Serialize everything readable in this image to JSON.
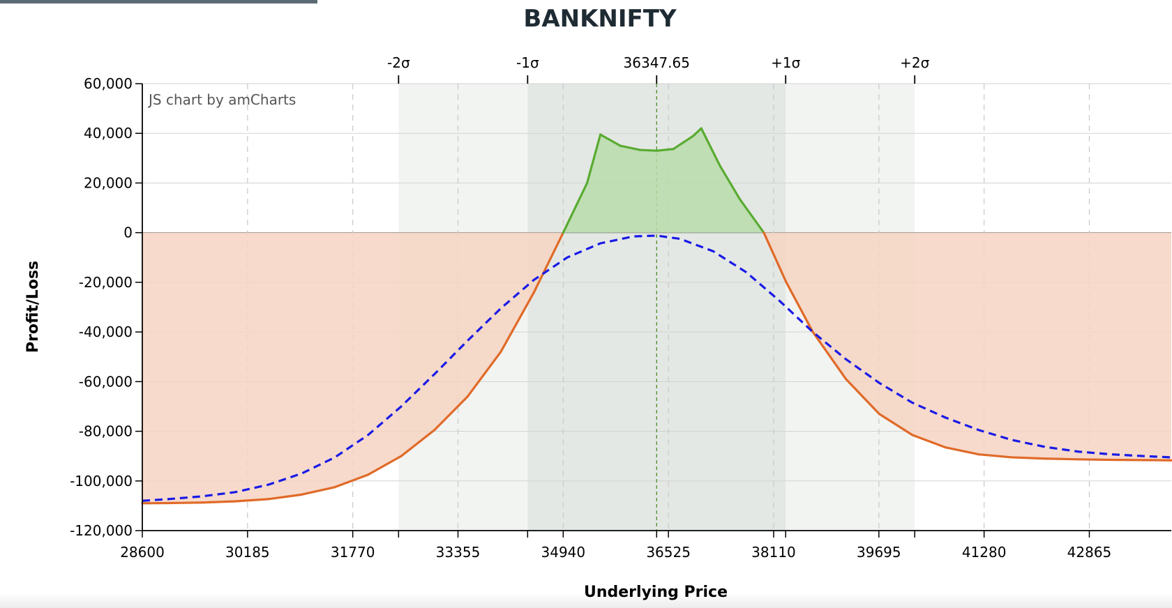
{
  "chart_data": {
    "type": "line",
    "title": "BANKNIFTY",
    "watermark": "JS chart by amCharts",
    "xlabel": "Underlying Price",
    "ylabel": "Profit/Loss",
    "xlim": [
      28600,
      44100
    ],
    "ylim": [
      -120000,
      60000
    ],
    "x_ticks": [
      28600,
      30185,
      31770,
      33355,
      34940,
      36525,
      38110,
      39695,
      41280,
      42865
    ],
    "x_tick_labels": [
      "28600",
      "30185",
      "31770",
      "33355",
      "34940",
      "36525",
      "38110",
      "39695",
      "41280",
      "42865"
    ],
    "y_ticks": [
      60000,
      40000,
      20000,
      0,
      -20000,
      -40000,
      -60000,
      -80000,
      -100000,
      -120000
    ],
    "y_tick_labels": [
      "60,000",
      "40,000",
      "20,000",
      "0",
      "-20,000",
      "-40,000",
      "-60,000",
      "-80,000",
      "-100,000",
      "-120,000"
    ],
    "spot": 36347.65,
    "sigma_markers": [
      {
        "label": "-2σ",
        "x": 32460
      },
      {
        "label": "-1σ",
        "x": 34404
      },
      {
        "label": "36347.65",
        "x": 36347.65
      },
      {
        "label": "+1σ",
        "x": 38291
      },
      {
        "label": "+2σ",
        "x": 40235
      }
    ],
    "series": [
      {
        "kind": "expiry_payoff",
        "color_profit": "#5aab32",
        "color_loss": "#e06a28",
        "fill_profit": "#b8dcaa",
        "fill_loss": "#f6d4c2",
        "x": [
          28600,
          29000,
          29500,
          30000,
          30500,
          31000,
          31500,
          32000,
          32500,
          33000,
          33500,
          34000,
          34500,
          34940,
          35300,
          35500,
          35800,
          36100,
          36350,
          36600,
          36900,
          37020,
          37300,
          37600,
          37962,
          38300,
          38700,
          39200,
          39700,
          40200,
          40700,
          41200,
          41700,
          42200,
          42700,
          43200,
          43700,
          44100
        ],
        "y": [
          -109000,
          -108900,
          -108700,
          -108200,
          -107300,
          -105500,
          -102500,
          -97500,
          -90000,
          -79500,
          -66000,
          -48000,
          -24000,
          0,
          20000,
          39500,
          35000,
          33300,
          33000,
          33700,
          39000,
          42000,
          27000,
          13500,
          0,
          -20000,
          -40000,
          -59000,
          -73000,
          -81500,
          -86500,
          -89300,
          -90500,
          -91000,
          -91300,
          -91500,
          -91600,
          -91700
        ]
      },
      {
        "kind": "t_plus_0",
        "color": "#1a1ae6",
        "x": [
          28600,
          29000,
          29500,
          30000,
          30500,
          31000,
          31500,
          32000,
          32500,
          33000,
          33500,
          34000,
          34500,
          35000,
          35500,
          36000,
          36350,
          36700,
          37200,
          37700,
          38200,
          38700,
          39200,
          39700,
          40200,
          40700,
          41200,
          41700,
          42200,
          42700,
          43200,
          43700,
          44100
        ],
        "y": [
          -108000,
          -107300,
          -106200,
          -104500,
          -101500,
          -97000,
          -90500,
          -81500,
          -70000,
          -57000,
          -43500,
          -30500,
          -19000,
          -10000,
          -4300,
          -1500,
          -1200,
          -2500,
          -7500,
          -16000,
          -27500,
          -40000,
          -51000,
          -60500,
          -68500,
          -74500,
          -79500,
          -83500,
          -86300,
          -88200,
          -89300,
          -90000,
          -90500
        ]
      }
    ]
  }
}
